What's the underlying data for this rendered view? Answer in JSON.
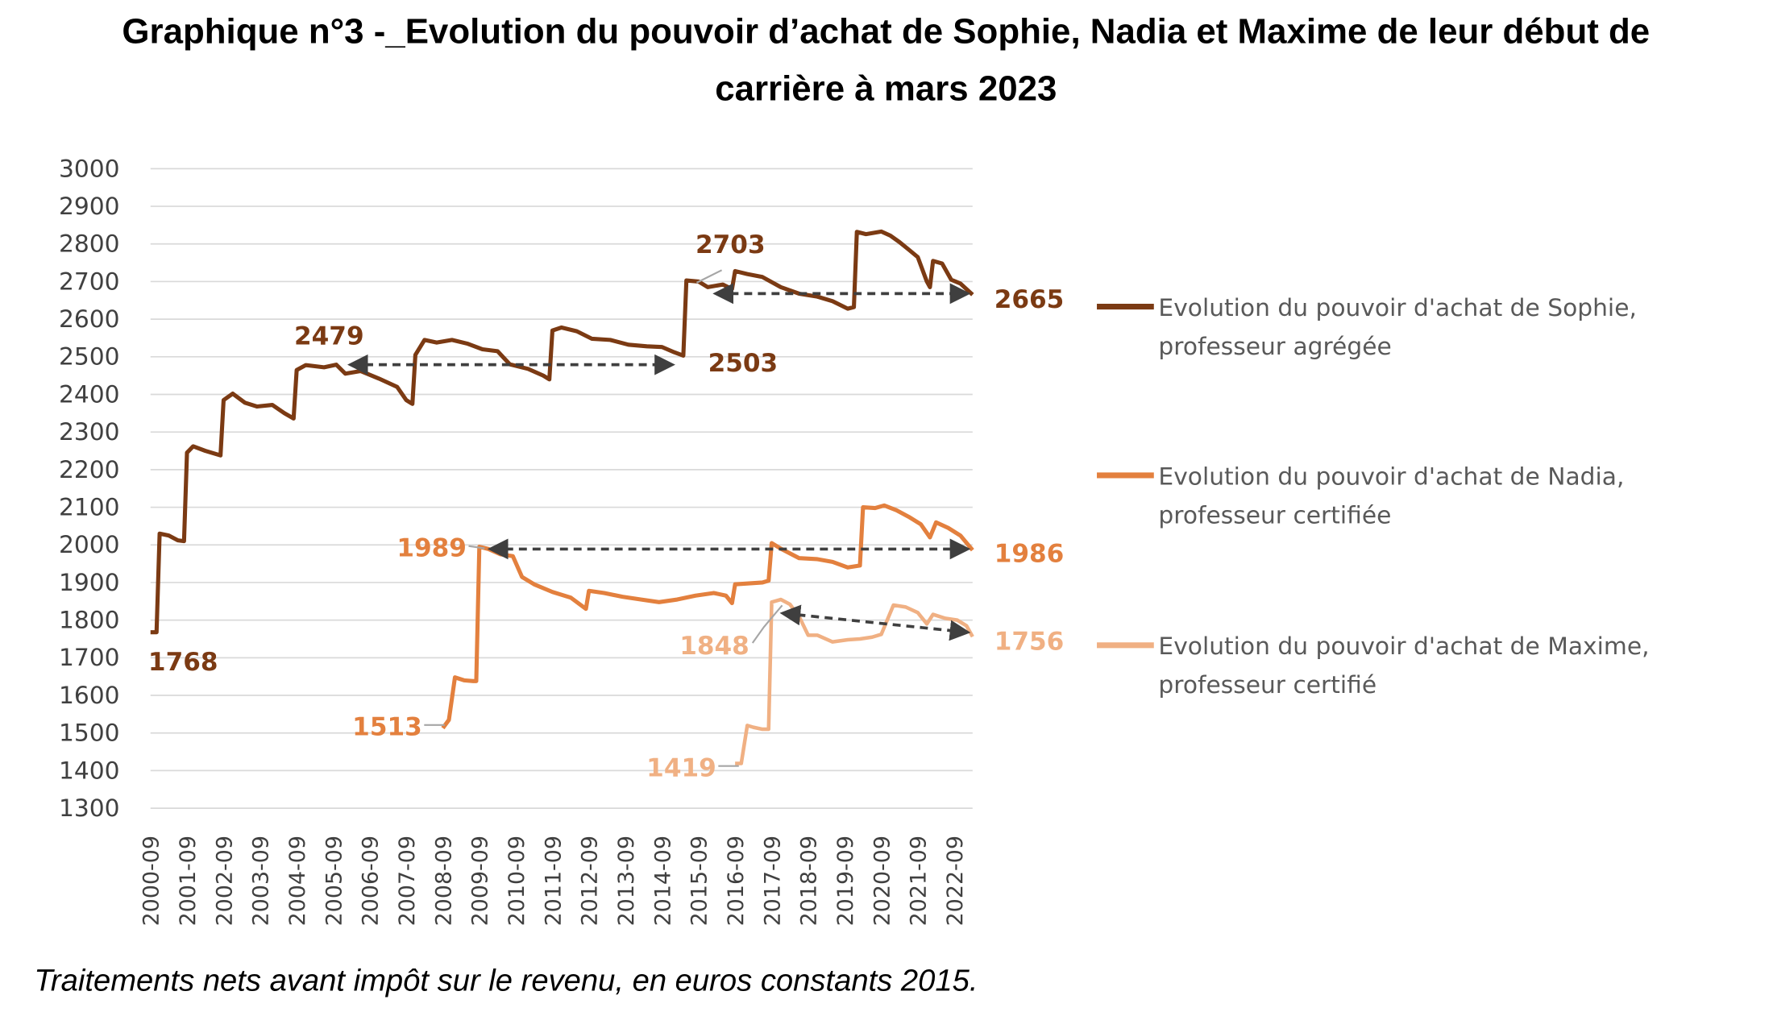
{
  "chart_data": {
    "type": "line",
    "title_lines": [
      "Graphique n°3 -_Evolution du pouvoir d’achat de Sophie, Nadia et Maxime de leur début de",
      "carrière à mars 2023"
    ],
    "note": "Traitements nets avant impôt sur le revenu, en euros constants 2015.",
    "y_ticks": [
      3000,
      2900,
      2800,
      2700,
      2600,
      2500,
      2400,
      2300,
      2200,
      2100,
      2000,
      1900,
      1800,
      1700,
      1600,
      1500,
      1400,
      1300
    ],
    "x_ticks": [
      "2000-09",
      "2001-09",
      "2002-09",
      "2003-09",
      "2004-09",
      "2005-09",
      "2006-09",
      "2007-09",
      "2008-09",
      "2009-09",
      "2010-09",
      "2011-09",
      "2012-09",
      "2013-09",
      "2014-09",
      "2015-09",
      "2016-09",
      "2017-09",
      "2018-09",
      "2019-09",
      "2020-09",
      "2021-09",
      "2022-09"
    ],
    "ylim": [
      1300,
      3000
    ],
    "grid": true,
    "legend_position": "right",
    "colors": {
      "sophie": "#7b3a13",
      "nadia": "#e3803e",
      "maxime": "#f0b083",
      "grid": "#d9d9d9",
      "arrow": "#3f3f3f"
    },
    "series": [
      {
        "key": "sophie",
        "legend_lines": [
          "Evolution du pouvoir d'achat de Sophie,",
          "professeur agrégée"
        ],
        "points": [
          [
            "2000-09",
            1768
          ],
          [
            "2000-11",
            1768
          ],
          [
            "2000-12",
            2030
          ],
          [
            "2001-03",
            2025
          ],
          [
            "2001-06",
            2012
          ],
          [
            "2001-08",
            2010
          ],
          [
            "2001-09",
            2245
          ],
          [
            "2001-11",
            2262
          ],
          [
            "2002-03",
            2250
          ],
          [
            "2002-08",
            2238
          ],
          [
            "2002-09",
            2385
          ],
          [
            "2002-12",
            2402
          ],
          [
            "2003-04",
            2378
          ],
          [
            "2003-08",
            2368
          ],
          [
            "2004-01",
            2372
          ],
          [
            "2004-05",
            2350
          ],
          [
            "2004-08",
            2336
          ],
          [
            "2004-09",
            2465
          ],
          [
            "2004-12",
            2478
          ],
          [
            "2005-06",
            2472
          ],
          [
            "2005-10",
            2479
          ],
          [
            "2006-01",
            2455
          ],
          [
            "2006-06",
            2462
          ],
          [
            "2006-12",
            2442
          ],
          [
            "2007-06",
            2420
          ],
          [
            "2007-09",
            2385
          ],
          [
            "2007-11",
            2375
          ],
          [
            "2007-12",
            2505
          ],
          [
            "2008-03",
            2545
          ],
          [
            "2008-07",
            2538
          ],
          [
            "2008-12",
            2545
          ],
          [
            "2009-05",
            2535
          ],
          [
            "2009-10",
            2520
          ],
          [
            "2010-03",
            2515
          ],
          [
            "2010-07",
            2480
          ],
          [
            "2011-01",
            2468
          ],
          [
            "2011-06",
            2450
          ],
          [
            "2011-08",
            2440
          ],
          [
            "2011-09",
            2570
          ],
          [
            "2011-12",
            2578
          ],
          [
            "2012-05",
            2568
          ],
          [
            "2012-10",
            2548
          ],
          [
            "2013-04",
            2545
          ],
          [
            "2013-10",
            2532
          ],
          [
            "2014-04",
            2528
          ],
          [
            "2014-09",
            2526
          ],
          [
            "2015-01",
            2512
          ],
          [
            "2015-04",
            2503
          ],
          [
            "2015-05",
            2703
          ],
          [
            "2015-09",
            2700
          ],
          [
            "2015-12",
            2685
          ],
          [
            "2016-05",
            2692
          ],
          [
            "2016-08",
            2680
          ],
          [
            "2016-09",
            2728
          ],
          [
            "2017-01",
            2720
          ],
          [
            "2017-06",
            2712
          ],
          [
            "2017-12",
            2685
          ],
          [
            "2018-06",
            2668
          ],
          [
            "2018-12",
            2660
          ],
          [
            "2019-05",
            2648
          ],
          [
            "2019-10",
            2628
          ],
          [
            "2019-12",
            2632
          ],
          [
            "2020-01",
            2832
          ],
          [
            "2020-04",
            2826
          ],
          [
            "2020-09",
            2833
          ],
          [
            "2020-12",
            2822
          ],
          [
            "2021-03",
            2805
          ],
          [
            "2021-06",
            2785
          ],
          [
            "2021-09",
            2765
          ],
          [
            "2021-12",
            2700
          ],
          [
            "2022-01",
            2685
          ],
          [
            "2022-02",
            2755
          ],
          [
            "2022-05",
            2748
          ],
          [
            "2022-08",
            2705
          ],
          [
            "2022-11",
            2695
          ],
          [
            "2023-03",
            2665
          ]
        ]
      },
      {
        "key": "nadia",
        "legend_lines": [
          "Evolution du pouvoir d'achat de Nadia,",
          "professeur certifiée"
        ],
        "points": [
          [
            "2008-09",
            1513
          ],
          [
            "2008-11",
            1535
          ],
          [
            "2009-01",
            1648
          ],
          [
            "2009-04",
            1640
          ],
          [
            "2009-07",
            1638
          ],
          [
            "2009-08",
            1638
          ],
          [
            "2009-09",
            1995
          ],
          [
            "2009-12",
            1989
          ],
          [
            "2010-04",
            1975
          ],
          [
            "2010-08",
            1970
          ],
          [
            "2010-11",
            1915
          ],
          [
            "2011-03",
            1895
          ],
          [
            "2011-09",
            1875
          ],
          [
            "2012-03",
            1860
          ],
          [
            "2012-08",
            1830
          ],
          [
            "2012-09",
            1878
          ],
          [
            "2013-02",
            1872
          ],
          [
            "2013-08",
            1862
          ],
          [
            "2014-02",
            1855
          ],
          [
            "2014-08",
            1848
          ],
          [
            "2015-02",
            1855
          ],
          [
            "2015-08",
            1865
          ],
          [
            "2016-02",
            1872
          ],
          [
            "2016-06",
            1865
          ],
          [
            "2016-08",
            1845
          ],
          [
            "2016-09",
            1895
          ],
          [
            "2017-02",
            1898
          ],
          [
            "2017-06",
            1900
          ],
          [
            "2017-08",
            1905
          ],
          [
            "2017-09",
            2005
          ],
          [
            "2017-12",
            1990
          ],
          [
            "2018-06",
            1965
          ],
          [
            "2018-12",
            1962
          ],
          [
            "2019-05",
            1955
          ],
          [
            "2019-10",
            1940
          ],
          [
            "2020-02",
            1945
          ],
          [
            "2020-03",
            2100
          ],
          [
            "2020-07",
            2098
          ],
          [
            "2020-10",
            2105
          ],
          [
            "2021-02",
            2092
          ],
          [
            "2021-06",
            2075
          ],
          [
            "2021-10",
            2055
          ],
          [
            "2022-01",
            2020
          ],
          [
            "2022-03",
            2060
          ],
          [
            "2022-07",
            2045
          ],
          [
            "2022-11",
            2025
          ],
          [
            "2023-03",
            1986
          ]
        ]
      },
      {
        "key": "maxime",
        "legend_lines": [
          "Evolution du pouvoir d'achat de Maxime,",
          "professeur certifié"
        ],
        "points": [
          [
            "2016-09",
            1419
          ],
          [
            "2016-11",
            1419
          ],
          [
            "2017-01",
            1520
          ],
          [
            "2017-03",
            1515
          ],
          [
            "2017-06",
            1510
          ],
          [
            "2017-08",
            1510
          ],
          [
            "2017-09",
            1848
          ],
          [
            "2017-12",
            1855
          ],
          [
            "2018-03",
            1842
          ],
          [
            "2018-06",
            1810
          ],
          [
            "2018-09",
            1760
          ],
          [
            "2018-12",
            1760
          ],
          [
            "2019-05",
            1742
          ],
          [
            "2019-10",
            1748
          ],
          [
            "2020-02",
            1750
          ],
          [
            "2020-06",
            1755
          ],
          [
            "2020-09",
            1762
          ],
          [
            "2021-01",
            1840
          ],
          [
            "2021-05",
            1835
          ],
          [
            "2021-09",
            1820
          ],
          [
            "2021-12",
            1790
          ],
          [
            "2022-02",
            1815
          ],
          [
            "2022-06",
            1805
          ],
          [
            "2022-10",
            1800
          ],
          [
            "2023-01",
            1785
          ],
          [
            "2023-03",
            1756
          ]
        ]
      }
    ],
    "annotations": [
      {
        "text": "1768",
        "series": "sophie"
      },
      {
        "text": "2479",
        "series": "sophie"
      },
      {
        "text": "2503",
        "series": "sophie"
      },
      {
        "text": "2703",
        "series": "sophie"
      },
      {
        "text": "2665",
        "series": "sophie"
      },
      {
        "text": "1989",
        "series": "nadia"
      },
      {
        "text": "1513",
        "series": "nadia"
      },
      {
        "text": "1986",
        "series": "nadia"
      },
      {
        "text": "1848",
        "series": "maxime"
      },
      {
        "text": "1419",
        "series": "maxime"
      },
      {
        "text": "1756",
        "series": "maxime"
      }
    ],
    "arrows": [
      {
        "from": [
          "2006-03",
          2479
        ],
        "to": [
          "2014-12",
          2479
        ]
      },
      {
        "from": [
          "2016-03",
          2668
        ],
        "to": [
          "2023-01",
          2668
        ]
      },
      {
        "from": [
          "2010-01",
          1989
        ],
        "to": [
          "2023-01",
          1989
        ]
      },
      {
        "from": [
          "2018-01",
          1818
        ],
        "to": [
          "2023-01",
          1768
        ]
      }
    ]
  }
}
